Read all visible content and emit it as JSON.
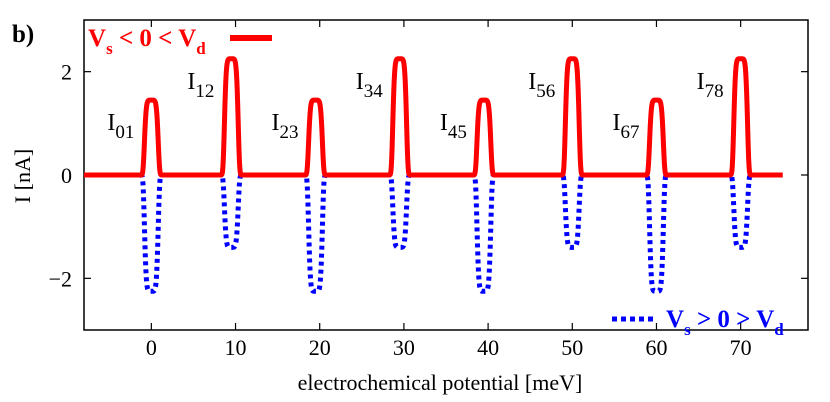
{
  "panel_label": "b)",
  "chart_data": {
    "type": "line",
    "title": "",
    "xlabel": "electrochemical potential [meV]",
    "ylabel": "I [nA]",
    "xlim": [
      -8,
      78
    ],
    "ylim": [
      -3,
      3
    ],
    "xticks": [
      0,
      10,
      20,
      30,
      40,
      50,
      60,
      70
    ],
    "yticks": [
      -2,
      0,
      2
    ],
    "xtick_labels": [
      "0",
      "10",
      "20",
      "30",
      "40",
      "50",
      "60",
      "70"
    ],
    "ytick_labels": [
      "−2",
      "0",
      "2"
    ],
    "peak_positions": [
      0,
      9.5,
      19.5,
      29.5,
      39.5,
      50,
      60,
      70
    ],
    "peak_width_meV": 0.8,
    "x_range": [
      -8,
      75
    ],
    "series": [
      {
        "name": "Vs < 0 < Vd",
        "legend_main": "V",
        "legend_sub1": "s",
        "legend_mid": " < 0 < V",
        "legend_sub2": "d",
        "color": "#ff0000",
        "style": "solid",
        "amplitudes": [
          1.45,
          2.25,
          1.45,
          2.25,
          1.45,
          2.25,
          1.45,
          2.25
        ]
      },
      {
        "name": "Vs > 0 > Vd",
        "legend_main": "V",
        "legend_sub1": "s",
        "legend_mid": " > 0 > V",
        "legend_sub2": "d",
        "color": "#0000ff",
        "style": "dotted",
        "amplitudes": [
          -2.25,
          -1.4,
          -2.25,
          -1.4,
          -2.25,
          -1.4,
          -2.25,
          -1.4
        ]
      }
    ],
    "peak_labels": [
      {
        "main": "I",
        "sub": "01"
      },
      {
        "main": "I",
        "sub": "12"
      },
      {
        "main": "I",
        "sub": "23"
      },
      {
        "main": "I",
        "sub": "34"
      },
      {
        "main": "I",
        "sub": "45"
      },
      {
        "main": "I",
        "sub": "56"
      },
      {
        "main": "I",
        "sub": "67"
      },
      {
        "main": "I",
        "sub": "78"
      }
    ]
  }
}
